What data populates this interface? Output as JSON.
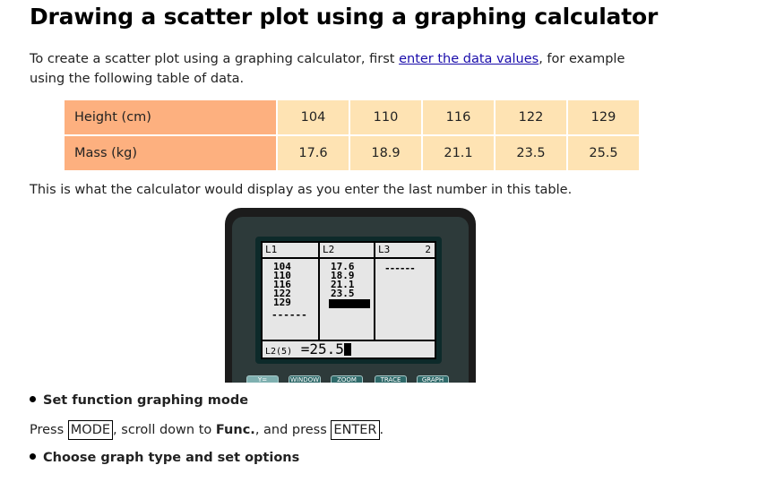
{
  "title": "Drawing a scatter plot using a graphing calculator",
  "intro": {
    "before": "To create a scatter plot using a graphing calculator, first ",
    "link": "enter the data values",
    "after": ", for example using the following table of data."
  },
  "table": {
    "rows": [
      {
        "label": "Height (cm)",
        "values": [
          "104",
          "110",
          "116",
          "122",
          "129"
        ]
      },
      {
        "label": "Mass (kg)",
        "values": [
          "17.6",
          "18.9",
          "21.1",
          "23.5",
          "25.5"
        ]
      }
    ]
  },
  "after_table": "This is what the calculator would display as you enter the last number in this table.",
  "calculator": {
    "col_labels": [
      "L1",
      "L2",
      "L3"
    ],
    "col_number": "2",
    "l1_values": [
      "104",
      "110",
      "116",
      "122",
      "129"
    ],
    "l1_dashes": "------",
    "l2_values": [
      "17.6",
      "18.9",
      "21.1",
      "23.5"
    ],
    "l3_dashes": "------",
    "entry_label": "L2(5)",
    "entry_value": "=25.5",
    "keys": [
      "Y=",
      "WINDOW",
      "ZOOM",
      "TRACE",
      "GRAPH"
    ]
  },
  "section1": {
    "heading": "Set function graphing mode",
    "press1": "Press ",
    "key_mode": "MODE",
    "mid": ", scroll down to ",
    "func": "Func.",
    "mid2": ", and press ",
    "key_enter": "ENTER",
    "end": "."
  },
  "section2": {
    "heading": "Choose graph type and set options"
  }
}
